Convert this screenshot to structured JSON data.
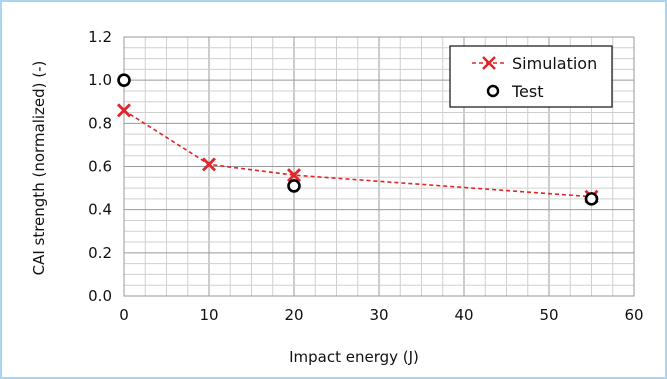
{
  "chart_data": {
    "type": "line",
    "title": "",
    "xlabel": "Impact energy (J)",
    "ylabel": "CAI strength (normalized) (-)",
    "xlim": [
      0,
      60
    ],
    "ylim": [
      0,
      1.2
    ],
    "x_ticks": [
      "0",
      "10",
      "20",
      "30",
      "40",
      "50",
      "60"
    ],
    "y_ticks": [
      "0.0",
      "0.2",
      "0.4",
      "0.6",
      "0.8",
      "1.0",
      "1.2"
    ],
    "grid": true,
    "legend_position": "top-right",
    "series": [
      {
        "name": "Simulation",
        "style": "dashed-line-x-marker",
        "color": "#e0262a",
        "points": [
          {
            "x": 0,
            "y": 0.86
          },
          {
            "x": 10,
            "y": 0.61
          },
          {
            "x": 20,
            "y": 0.56
          },
          {
            "x": 55,
            "y": 0.46
          }
        ]
      },
      {
        "name": "Test",
        "style": "open-circle-marker",
        "color": "#000000",
        "points": [
          {
            "x": 0,
            "y": 1.0
          },
          {
            "x": 20,
            "y": 0.51
          },
          {
            "x": 55,
            "y": 0.45
          }
        ]
      }
    ]
  }
}
